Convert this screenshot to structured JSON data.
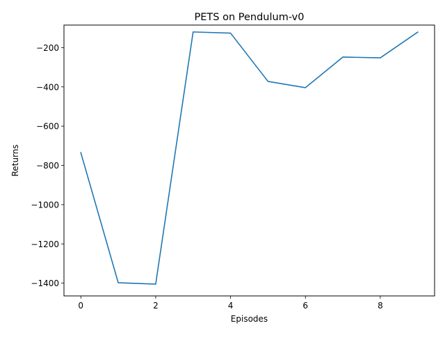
{
  "chart_data": {
    "type": "line",
    "title": "PETS on Pendulum-v0",
    "xlabel": "Episodes",
    "ylabel": "Returns",
    "xlim": [
      -0.45,
      9.45
    ],
    "ylim": [
      -1465,
      -85
    ],
    "xticks": [
      0,
      2,
      4,
      6,
      8
    ],
    "yticks": [
      -1400,
      -1200,
      -1000,
      -800,
      -600,
      -400,
      -200
    ],
    "grid": false,
    "series": [
      {
        "color": "#1f77b4",
        "x": [
          0,
          1,
          2,
          3,
          4,
          5,
          6,
          7,
          8,
          9
        ],
        "y": [
          -735,
          -1398,
          -1405,
          -120,
          -126,
          -372,
          -404,
          -248,
          -252,
          -121
        ]
      }
    ]
  }
}
